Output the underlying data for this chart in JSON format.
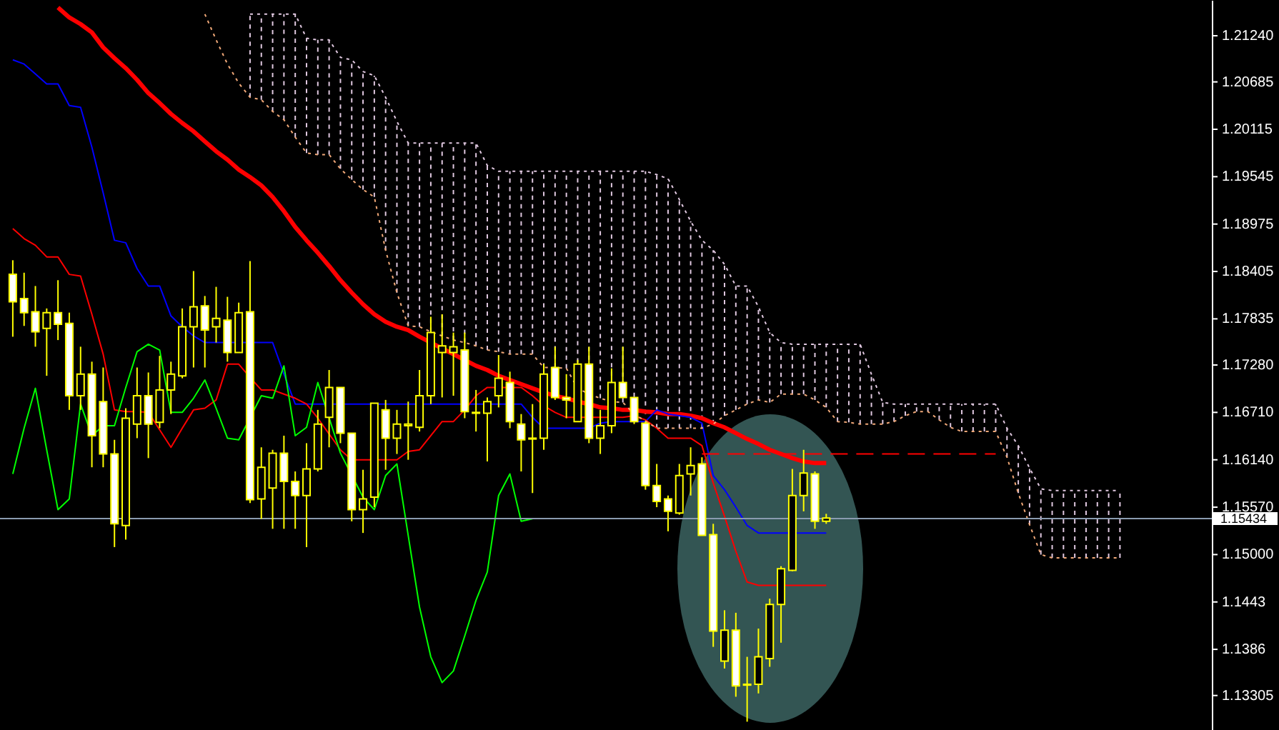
{
  "chart_data": {
    "type": "candlestick",
    "color": "#ffff00",
    "categories": [
      null,
      null,
      null,
      null,
      null,
      null,
      null,
      null,
      null,
      null,
      null,
      null,
      null,
      null,
      null,
      null,
      null,
      null,
      null,
      null,
      null,
      null,
      null,
      null,
      null,
      null,
      null,
      null,
      null,
      null,
      null,
      null,
      null,
      null,
      null,
      null,
      null,
      null,
      null,
      null,
      null,
      null,
      null,
      null,
      null,
      null,
      null,
      null,
      null,
      null,
      null,
      null,
      null,
      null,
      null,
      null,
      null,
      null,
      null,
      null,
      null,
      null,
      null,
      null,
      null,
      null,
      null,
      null,
      null,
      null,
      null,
      null,
      null,
      null,
      null,
      null,
      null,
      null,
      null,
      null,
      null,
      null,
      null,
      null,
      null,
      null,
      null,
      null,
      null,
      null,
      null,
      null,
      null,
      null,
      null,
      null,
      null,
      null,
      null,
      null,
      null,
      null,
      null,
      null,
      null,
      null
    ],
    "ohlc": [
      [
        1.1837,
        1.1854,
        1.1762,
        1.1804
      ],
      [
        1.1808,
        1.1839,
        1.1775,
        1.1791
      ],
      [
        1.1792,
        1.1823,
        1.175,
        1.1768
      ],
      [
        1.1772,
        1.1796,
        1.1715,
        1.1791
      ],
      [
        1.1791,
        1.183,
        1.1758,
        1.1777
      ],
      [
        1.1778,
        1.1791,
        1.1674,
        1.1691
      ],
      [
        1.1691,
        1.175,
        1.1674,
        1.1717
      ],
      [
        1.1717,
        1.1732,
        1.1605,
        1.1643
      ],
      [
        1.1684,
        1.1725,
        1.1605,
        1.1621
      ],
      [
        1.1621,
        1.1638,
        1.1509,
        1.1537
      ],
      [
        1.1535,
        1.1676,
        1.1518,
        1.1664
      ],
      [
        1.1657,
        1.1725,
        1.164,
        1.1691
      ],
      [
        1.1691,
        1.1719,
        1.1616,
        1.1657
      ],
      [
        1.1659,
        1.1739,
        1.1652,
        1.1698
      ],
      [
        1.1698,
        1.1732,
        1.1669,
        1.1717
      ],
      [
        1.1715,
        1.1796,
        1.1712,
        1.1774
      ],
      [
        1.1774,
        1.1841,
        1.1725,
        1.1798
      ],
      [
        1.1799,
        1.1811,
        1.1725,
        1.177
      ],
      [
        1.1774,
        1.1822,
        1.1755,
        1.1784
      ],
      [
        1.1782,
        1.181,
        1.1732,
        1.1743
      ],
      [
        1.1743,
        1.1803,
        1.1743,
        1.1791
      ],
      [
        1.1792,
        1.1853,
        1.1562,
        1.1566
      ],
      [
        1.1567,
        1.1629,
        1.1543,
        1.1605
      ],
      [
        1.158,
        1.1626,
        1.1531,
        1.1622
      ],
      [
        1.1622,
        1.1643,
        1.1531,
        1.1588
      ],
      [
        1.1588,
        1.16,
        1.1531,
        1.1571
      ],
      [
        1.1571,
        1.1634,
        1.1509,
        1.1603
      ],
      [
        1.1603,
        1.1674,
        1.16,
        1.1657
      ],
      [
        1.1665,
        1.1722,
        1.1629,
        1.1701
      ],
      [
        1.1701,
        1.1701,
        1.1634,
        1.1646
      ],
      [
        1.1646,
        1.1646,
        1.154,
        1.1554
      ],
      [
        1.1554,
        1.1602,
        1.1526,
        1.1567
      ],
      [
        1.1569,
        1.1682,
        1.1557,
        1.1682
      ],
      [
        1.1674,
        1.1686,
        1.1602,
        1.164
      ],
      [
        1.164,
        1.1674,
        1.1621,
        1.1657
      ],
      [
        1.1655,
        1.1684,
        1.1614,
        1.1657
      ],
      [
        1.1653,
        1.1722,
        1.1648,
        1.1691
      ],
      [
        1.1691,
        1.1786,
        1.1681,
        1.1767
      ],
      [
        1.1743,
        1.1789,
        1.1689,
        1.1751
      ],
      [
        1.1743,
        1.1767,
        1.1691,
        1.175
      ],
      [
        1.1746,
        1.1767,
        1.1664,
        1.1672
      ],
      [
        1.1671,
        1.1698,
        1.1648,
        1.167
      ],
      [
        1.167,
        1.1689,
        1.1612,
        1.1684
      ],
      [
        1.1691,
        1.174,
        1.1677,
        1.1712
      ],
      [
        1.1707,
        1.172,
        1.1652,
        1.166
      ],
      [
        1.1657,
        1.1669,
        1.16,
        1.1638
      ],
      [
        1.164,
        1.1681,
        1.1574,
        1.1639
      ],
      [
        1.164,
        1.1729,
        1.1626,
        1.1717
      ],
      [
        1.1725,
        1.175,
        1.1686,
        1.1689
      ],
      [
        1.1689,
        1.1717,
        1.1664,
        1.1686
      ],
      [
        1.166,
        1.1734,
        1.166,
        1.1729
      ],
      [
        1.1729,
        1.175,
        1.1634,
        1.164
      ],
      [
        1.164,
        1.1674,
        1.1621,
        1.1655
      ],
      [
        1.1655,
        1.1724,
        1.1646,
        1.1707
      ],
      [
        1.1707,
        1.175,
        1.1688,
        1.1689
      ],
      [
        1.1689,
        1.1689,
        1.1657,
        1.166
      ],
      [
        1.1658,
        1.166,
        1.1578,
        1.1583
      ],
      [
        1.1583,
        1.1609,
        1.1557,
        1.1564
      ],
      [
        1.1567,
        1.1571,
        1.1528,
        1.1552
      ],
      [
        1.155,
        1.1609,
        1.1548,
        1.1595
      ],
      [
        1.1597,
        1.1629,
        1.1571,
        1.1607
      ],
      [
        1.1609,
        1.1617,
        1.1523,
        1.1523
      ],
      [
        1.1524,
        1.1537,
        1.1389,
        1.1408
      ],
      [
        1.1372,
        1.1433,
        1.1363,
        1.1409
      ],
      [
        1.1409,
        1.143,
        1.1329,
        1.1342
      ],
      [
        1.1344,
        1.1377,
        1.1299,
        1.1343
      ],
      [
        1.1344,
        1.1411,
        1.1333,
        1.1377
      ],
      [
        1.1375,
        1.1447,
        1.1365,
        1.144
      ],
      [
        1.144,
        1.1486,
        1.1394,
        1.1483
      ],
      [
        1.1481,
        1.1603,
        1.148,
        1.1571
      ],
      [
        1.1571,
        1.1626,
        1.1552,
        1.1598
      ],
      [
        1.1597,
        1.16,
        1.1531,
        1.154
      ],
      [
        1.154,
        1.1549,
        1.1537,
        1.1544
      ],
      null,
      null,
      null,
      null,
      null,
      null,
      null,
      null,
      null,
      null,
      null,
      null,
      null,
      null,
      null,
      null,
      null,
      null,
      null,
      null,
      null,
      null,
      null,
      null,
      null,
      null,
      null,
      null,
      null,
      null,
      null,
      null,
      null
    ],
    "series": [
      {
        "type": "line",
        "color": "#ff0000",
        "values": [
          null,
          null,
          null,
          null,
          1.2158,
          1.2146,
          1.2138,
          1.2128,
          1.211,
          1.2097,
          1.2085,
          1.2071,
          1.2055,
          1.2043,
          1.203,
          1.2019,
          1.2009,
          1.1997,
          1.1985,
          1.1975,
          1.1963,
          1.1954,
          1.1944,
          1.193,
          1.1913,
          1.1894,
          1.1878,
          1.1863,
          1.1847,
          1.183,
          1.1815,
          1.1801,
          1.1789,
          1.178,
          1.1774,
          1.177,
          1.1762,
          1.1755,
          1.1748,
          1.1741,
          1.1734,
          1.1727,
          1.1722,
          1.1715,
          1.171,
          1.1705,
          1.17,
          1.1695,
          1.1691,
          1.1688,
          1.1684,
          1.1681,
          1.1677,
          1.1676,
          1.1674,
          1.1674,
          1.1672,
          1.1671,
          1.1669,
          1.1669,
          1.1667,
          1.1664,
          1.1658,
          1.1653,
          1.1646,
          1.1639,
          1.1633,
          1.1626,
          1.1621,
          1.1616,
          1.1612,
          1.161,
          1.161,
          null,
          null,
          null,
          null,
          null,
          null,
          null,
          null,
          null,
          null,
          null,
          null,
          null,
          null,
          null,
          null,
          null,
          null,
          null,
          null,
          null,
          null,
          null,
          null,
          null,
          null,
          null,
          null,
          null,
          null,
          null,
          null,
          null
        ]
      },
      {
        "type": "line",
        "color": "#0000ff",
        "values": [
          1.2095,
          1.209,
          1.2078,
          1.2066,
          1.2066,
          1.204,
          1.2038,
          1.199,
          1.1935,
          1.1878,
          1.1875,
          1.1844,
          1.1823,
          1.1823,
          1.1787,
          1.1774,
          1.1763,
          1.1755,
          1.1755,
          1.1755,
          1.1755,
          1.1755,
          1.1755,
          1.1755,
          1.1717,
          1.1681,
          1.1681,
          1.1681,
          1.1681,
          1.1681,
          1.1681,
          1.1681,
          1.1681,
          1.1681,
          1.1681,
          1.1681,
          1.1681,
          1.1681,
          1.1681,
          1.1681,
          1.1681,
          1.1681,
          1.1681,
          1.1681,
          1.1681,
          1.1681,
          1.1665,
          1.1652,
          1.1652,
          1.1652,
          1.1652,
          1.1652,
          1.1658,
          1.166,
          1.166,
          1.166,
          1.166,
          1.1674,
          1.1669,
          1.1667,
          1.1665,
          1.1658,
          1.1595,
          1.1578,
          1.1557,
          1.1535,
          1.1526,
          1.1526,
          1.1526,
          1.1526,
          1.1526,
          1.1526,
          1.1526,
          null,
          null,
          null,
          null,
          null,
          null,
          null,
          null,
          null,
          null,
          null,
          null,
          null,
          null,
          null,
          null,
          null,
          null,
          null,
          null,
          null,
          null,
          null,
          null,
          null,
          null,
          null,
          null,
          null,
          null,
          null,
          null,
          null
        ]
      },
      {
        "type": "line",
        "color": "#ff0000",
        "values": [
          1.1892,
          1.188,
          1.1872,
          1.1858,
          1.1858,
          1.1837,
          1.1835,
          1.1789,
          1.1741,
          1.1674,
          1.1672,
          1.1672,
          1.1671,
          1.165,
          1.1629,
          1.1652,
          1.1674,
          1.1676,
          1.1686,
          1.1729,
          1.1729,
          1.1713,
          1.1698,
          1.1698,
          1.1693,
          1.1688,
          1.1681,
          1.1664,
          1.1645,
          1.1626,
          1.1614,
          1.1614,
          1.1614,
          1.1614,
          1.1614,
          1.1624,
          1.1626,
          1.1643,
          1.166,
          1.166,
          1.1674,
          1.1691,
          1.1701,
          1.1701,
          1.1701,
          1.1701,
          1.1691,
          1.1679,
          1.1671,
          1.1665,
          1.1665,
          1.1665,
          1.1665,
          1.1665,
          1.1665,
          1.1667,
          1.1662,
          1.1652,
          1.164,
          1.164,
          1.164,
          1.1631,
          1.1586,
          1.1546,
          1.1504,
          1.1467,
          1.1463,
          1.1463,
          1.1463,
          1.1463,
          1.1463,
          1.1463,
          1.1463,
          null,
          null,
          null,
          null,
          null,
          null,
          null,
          null,
          null,
          null,
          null,
          null,
          null,
          null,
          null,
          null,
          null,
          null,
          null,
          null,
          null,
          null,
          null,
          null,
          null,
          null,
          null,
          null,
          null,
          null,
          null,
          null,
          null
        ]
      },
      {
        "type": "line",
        "color": "#00ff00",
        "values": [
          1.1597,
          1.1652,
          1.17,
          1.1626,
          1.1554,
          1.1567,
          1.1681,
          1.1643,
          1.1655,
          1.1655,
          1.1701,
          1.1744,
          1.1753,
          1.1746,
          1.1671,
          1.1671,
          1.1688,
          1.171,
          1.1676,
          1.164,
          1.1638,
          null,
          1.1691,
          1.1688,
          1.1727,
          1.1643,
          1.1653,
          1.1707,
          null,
          1.1622,
          null,
          1.1569,
          1.1554,
          1.1595,
          1.1609,
          1.1523,
          1.1437,
          1.1377,
          1.1346,
          1.136,
          1.1402,
          1.1445,
          1.1479,
          1.1571,
          1.1597,
          1.154,
          1.1543,
          null,
          null,
          null,
          null,
          null,
          null,
          null,
          null,
          null,
          null,
          null,
          null,
          null,
          null,
          null,
          null,
          null,
          null,
          null,
          null,
          null,
          null,
          null,
          null,
          null,
          null,
          null,
          null,
          null,
          null,
          null,
          null,
          null,
          null,
          null,
          null,
          null,
          null,
          null,
          null,
          null,
          null,
          null,
          null,
          null,
          null,
          null,
          null,
          null,
          null,
          null,
          null,
          null,
          null,
          null,
          null,
          null,
          null,
          null
        ]
      },
      {
        "type": "line",
        "color": "#ff0000",
        "line_style": "dashed",
        "values": [
          null,
          null,
          null,
          null,
          null,
          null,
          null,
          null,
          null,
          null,
          null,
          null,
          null,
          null,
          null,
          null,
          null,
          null,
          null,
          null,
          null,
          null,
          null,
          null,
          null,
          null,
          null,
          null,
          null,
          null,
          null,
          null,
          null,
          null,
          null,
          null,
          null,
          null,
          null,
          null,
          null,
          null,
          null,
          null,
          null,
          null,
          null,
          null,
          null,
          null,
          null,
          null,
          null,
          null,
          null,
          null,
          null,
          null,
          null,
          null,
          null,
          1.1621,
          1.1621,
          1.1621,
          1.1621,
          1.1621,
          1.1621,
          1.1621,
          1.1621,
          1.1621,
          1.1621,
          1.1621,
          1.1621,
          1.1621,
          1.1621,
          1.1621,
          1.1621,
          1.1621,
          1.1621,
          1.1621,
          1.1621,
          1.1621,
          1.1621,
          1.1621,
          1.1621,
          1.1621,
          1.1621,
          1.1621,
          null,
          null,
          null,
          null,
          null,
          null,
          null,
          null,
          null,
          null,
          null,
          null,
          null,
          null,
          null,
          null,
          null,
          null
        ]
      },
      {
        "type": "line",
        "color": "#f0a878",
        "line_style": "dotted",
        "values": [
          null,
          null,
          null,
          null,
          null,
          null,
          null,
          null,
          null,
          null,
          null,
          null,
          null,
          null,
          null,
          null,
          null,
          1.215,
          1.2119,
          1.209,
          1.2067,
          1.205,
          1.2047,
          1.2033,
          1.2023,
          1.2002,
          1.1983,
          1.1981,
          1.1981,
          1.1964,
          1.1951,
          1.1939,
          1.193,
          1.1866,
          1.1815,
          1.1775,
          1.1774,
          1.1768,
          1.1763,
          1.1758,
          1.1755,
          1.1751,
          1.1746,
          1.1744,
          1.1741,
          1.1741,
          1.1741,
          1.1725,
          1.1725,
          1.1724,
          1.17,
          1.1693,
          1.1688,
          1.1684,
          1.1683,
          1.1669,
          null,
          1.1652,
          1.1652,
          1.1652,
          1.1652,
          1.1652,
          1.1657,
          1.1667,
          1.1674,
          1.1681,
          1.1686,
          1.1683,
          1.1693,
          1.1693,
          1.1693,
          1.1686,
          1.1677,
          1.166,
          1.1659,
          1.1657,
          1.1657,
          1.1657,
          1.166,
          1.1667,
          1.1672,
          1.1672,
          1.1662,
          1.1653,
          1.1648,
          1.1648,
          1.1648,
          1.1648,
          1.1617,
          1.1574,
          1.1536,
          1.15,
          1.1496,
          1.1496,
          1.1496,
          1.1496,
          1.1496,
          1.1496,
          1.1496,
          null,
          null,
          null,
          null,
          null,
          null,
          null
        ]
      },
      {
        "type": "line",
        "color": "#e0c8e0",
        "line_style": "dotted",
        "values": [
          null,
          null,
          null,
          null,
          null,
          null,
          null,
          null,
          null,
          null,
          null,
          null,
          null,
          null,
          null,
          null,
          null,
          null,
          null,
          null,
          null,
          1.215,
          1.215,
          1.215,
          1.215,
          1.215,
          1.2121,
          1.2119,
          1.2119,
          1.2098,
          1.2095,
          1.2081,
          1.2076,
          1.205,
          1.2021,
          1.1995,
          1.1995,
          1.1995,
          1.1995,
          1.1995,
          1.1995,
          1.1995,
          1.1968,
          1.1961,
          1.1961,
          1.1961,
          1.1961,
          1.1961,
          1.1961,
          1.1961,
          1.1961,
          1.1961,
          1.1961,
          1.1961,
          1.1961,
          1.1961,
          1.1961,
          1.1957,
          1.1952,
          1.1927,
          1.1901,
          1.1878,
          1.1866,
          1.1849,
          1.1823,
          1.1823,
          1.1798,
          1.1767,
          1.1755,
          1.1753,
          1.1753,
          1.1753,
          1.1753,
          1.1753,
          1.1753,
          1.1753,
          1.1717,
          1.1683,
          1.1681,
          1.1681,
          1.1681,
          1.1681,
          1.1681,
          1.1681,
          1.1681,
          1.1681,
          1.1681,
          1.1681,
          1.1652,
          1.1631,
          1.1604,
          1.1579,
          1.1577,
          1.1577,
          1.1577,
          1.1577,
          1.1577,
          1.1577,
          1.1577,
          null,
          null,
          null,
          null,
          null,
          null,
          null
        ]
      }
    ],
    "ylim": [
      1.1289,
      1.2167
    ],
    "yticks": [
      {
        "value": 1.2124,
        "label": "1.21240"
      },
      1.20685,
      1.20115,
      1.19545,
      1.18975,
      1.18405,
      1.17835,
      {
        "value": 1.1728,
        "label": "1.17280"
      },
      {
        "value": 1.1671,
        "label": "1.16710"
      },
      {
        "value": 1.1614,
        "label": "1.16140"
      },
      {
        "value": 1.1557,
        "label": "1.15570"
      },
      {
        "value": 1.15,
        "label": "1.15000"
      },
      1.1443,
      1.1386,
      1.13305
    ],
    "ref_lines": [
      {
        "axis": "y",
        "value": 1.15434,
        "label": "1.15434",
        "color": "#8a9bb0"
      }
    ],
    "tick_labels": "y"
  }
}
